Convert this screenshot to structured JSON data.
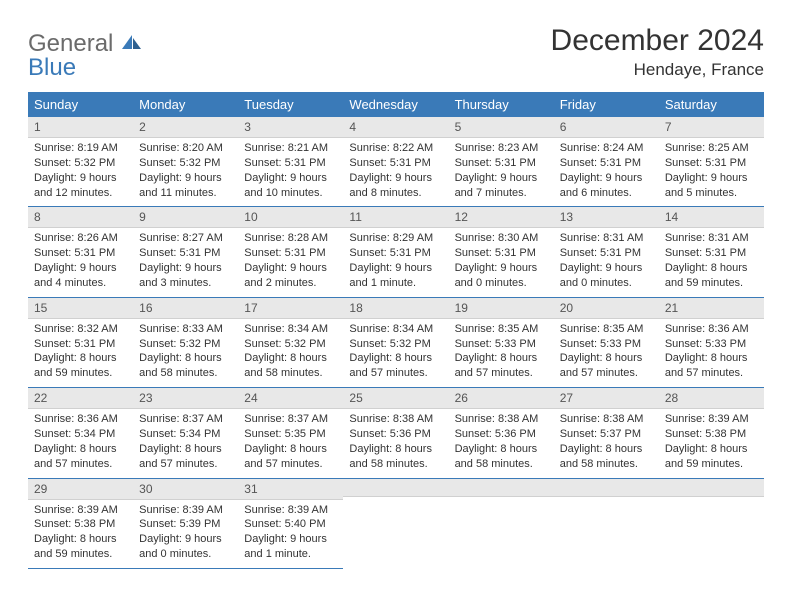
{
  "logo": {
    "word1": "General",
    "word2": "Blue"
  },
  "title": "December 2024",
  "subtitle": "Hendaye, France",
  "colors": {
    "header_bg": "#3a7ab8",
    "header_text": "#ffffff",
    "daynum_bg": "#e8e8e8",
    "cell_border": "#3a7ab8",
    "logo_blue": "#3a7ab8",
    "logo_gray": "#6b6b6b"
  },
  "weekdays": [
    "Sunday",
    "Monday",
    "Tuesday",
    "Wednesday",
    "Thursday",
    "Friday",
    "Saturday"
  ],
  "weeks": [
    [
      {
        "n": "1",
        "sr": "Sunrise: 8:19 AM",
        "ss": "Sunset: 5:32 PM",
        "d1": "Daylight: 9 hours",
        "d2": "and 12 minutes."
      },
      {
        "n": "2",
        "sr": "Sunrise: 8:20 AM",
        "ss": "Sunset: 5:32 PM",
        "d1": "Daylight: 9 hours",
        "d2": "and 11 minutes."
      },
      {
        "n": "3",
        "sr": "Sunrise: 8:21 AM",
        "ss": "Sunset: 5:31 PM",
        "d1": "Daylight: 9 hours",
        "d2": "and 10 minutes."
      },
      {
        "n": "4",
        "sr": "Sunrise: 8:22 AM",
        "ss": "Sunset: 5:31 PM",
        "d1": "Daylight: 9 hours",
        "d2": "and 8 minutes."
      },
      {
        "n": "5",
        "sr": "Sunrise: 8:23 AM",
        "ss": "Sunset: 5:31 PM",
        "d1": "Daylight: 9 hours",
        "d2": "and 7 minutes."
      },
      {
        "n": "6",
        "sr": "Sunrise: 8:24 AM",
        "ss": "Sunset: 5:31 PM",
        "d1": "Daylight: 9 hours",
        "d2": "and 6 minutes."
      },
      {
        "n": "7",
        "sr": "Sunrise: 8:25 AM",
        "ss": "Sunset: 5:31 PM",
        "d1": "Daylight: 9 hours",
        "d2": "and 5 minutes."
      }
    ],
    [
      {
        "n": "8",
        "sr": "Sunrise: 8:26 AM",
        "ss": "Sunset: 5:31 PM",
        "d1": "Daylight: 9 hours",
        "d2": "and 4 minutes."
      },
      {
        "n": "9",
        "sr": "Sunrise: 8:27 AM",
        "ss": "Sunset: 5:31 PM",
        "d1": "Daylight: 9 hours",
        "d2": "and 3 minutes."
      },
      {
        "n": "10",
        "sr": "Sunrise: 8:28 AM",
        "ss": "Sunset: 5:31 PM",
        "d1": "Daylight: 9 hours",
        "d2": "and 2 minutes."
      },
      {
        "n": "11",
        "sr": "Sunrise: 8:29 AM",
        "ss": "Sunset: 5:31 PM",
        "d1": "Daylight: 9 hours",
        "d2": "and 1 minute."
      },
      {
        "n": "12",
        "sr": "Sunrise: 8:30 AM",
        "ss": "Sunset: 5:31 PM",
        "d1": "Daylight: 9 hours",
        "d2": "and 0 minutes."
      },
      {
        "n": "13",
        "sr": "Sunrise: 8:31 AM",
        "ss": "Sunset: 5:31 PM",
        "d1": "Daylight: 9 hours",
        "d2": "and 0 minutes."
      },
      {
        "n": "14",
        "sr": "Sunrise: 8:31 AM",
        "ss": "Sunset: 5:31 PM",
        "d1": "Daylight: 8 hours",
        "d2": "and 59 minutes."
      }
    ],
    [
      {
        "n": "15",
        "sr": "Sunrise: 8:32 AM",
        "ss": "Sunset: 5:31 PM",
        "d1": "Daylight: 8 hours",
        "d2": "and 59 minutes."
      },
      {
        "n": "16",
        "sr": "Sunrise: 8:33 AM",
        "ss": "Sunset: 5:32 PM",
        "d1": "Daylight: 8 hours",
        "d2": "and 58 minutes."
      },
      {
        "n": "17",
        "sr": "Sunrise: 8:34 AM",
        "ss": "Sunset: 5:32 PM",
        "d1": "Daylight: 8 hours",
        "d2": "and 58 minutes."
      },
      {
        "n": "18",
        "sr": "Sunrise: 8:34 AM",
        "ss": "Sunset: 5:32 PM",
        "d1": "Daylight: 8 hours",
        "d2": "and 57 minutes."
      },
      {
        "n": "19",
        "sr": "Sunrise: 8:35 AM",
        "ss": "Sunset: 5:33 PM",
        "d1": "Daylight: 8 hours",
        "d2": "and 57 minutes."
      },
      {
        "n": "20",
        "sr": "Sunrise: 8:35 AM",
        "ss": "Sunset: 5:33 PM",
        "d1": "Daylight: 8 hours",
        "d2": "and 57 minutes."
      },
      {
        "n": "21",
        "sr": "Sunrise: 8:36 AM",
        "ss": "Sunset: 5:33 PM",
        "d1": "Daylight: 8 hours",
        "d2": "and 57 minutes."
      }
    ],
    [
      {
        "n": "22",
        "sr": "Sunrise: 8:36 AM",
        "ss": "Sunset: 5:34 PM",
        "d1": "Daylight: 8 hours",
        "d2": "and 57 minutes."
      },
      {
        "n": "23",
        "sr": "Sunrise: 8:37 AM",
        "ss": "Sunset: 5:34 PM",
        "d1": "Daylight: 8 hours",
        "d2": "and 57 minutes."
      },
      {
        "n": "24",
        "sr": "Sunrise: 8:37 AM",
        "ss": "Sunset: 5:35 PM",
        "d1": "Daylight: 8 hours",
        "d2": "and 57 minutes."
      },
      {
        "n": "25",
        "sr": "Sunrise: 8:38 AM",
        "ss": "Sunset: 5:36 PM",
        "d1": "Daylight: 8 hours",
        "d2": "and 58 minutes."
      },
      {
        "n": "26",
        "sr": "Sunrise: 8:38 AM",
        "ss": "Sunset: 5:36 PM",
        "d1": "Daylight: 8 hours",
        "d2": "and 58 minutes."
      },
      {
        "n": "27",
        "sr": "Sunrise: 8:38 AM",
        "ss": "Sunset: 5:37 PM",
        "d1": "Daylight: 8 hours",
        "d2": "and 58 minutes."
      },
      {
        "n": "28",
        "sr": "Sunrise: 8:39 AM",
        "ss": "Sunset: 5:38 PM",
        "d1": "Daylight: 8 hours",
        "d2": "and 59 minutes."
      }
    ],
    [
      {
        "n": "29",
        "sr": "Sunrise: 8:39 AM",
        "ss": "Sunset: 5:38 PM",
        "d1": "Daylight: 8 hours",
        "d2": "and 59 minutes."
      },
      {
        "n": "30",
        "sr": "Sunrise: 8:39 AM",
        "ss": "Sunset: 5:39 PM",
        "d1": "Daylight: 9 hours",
        "d2": "and 0 minutes."
      },
      {
        "n": "31",
        "sr": "Sunrise: 8:39 AM",
        "ss": "Sunset: 5:40 PM",
        "d1": "Daylight: 9 hours",
        "d2": "and 1 minute."
      },
      null,
      null,
      null,
      null
    ]
  ]
}
